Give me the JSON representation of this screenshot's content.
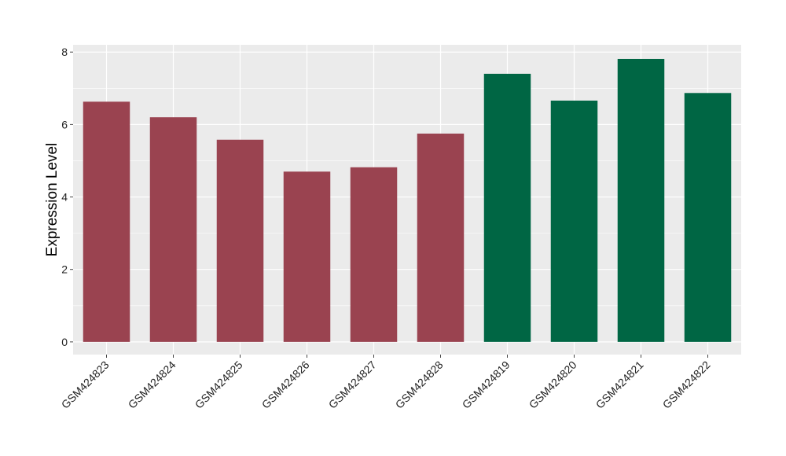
{
  "chart_data": {
    "type": "bar",
    "title": "",
    "xlabel": "",
    "ylabel": "Expression Level",
    "categories": [
      "GSM424823",
      "GSM424824",
      "GSM424825",
      "GSM424826",
      "GSM424827",
      "GSM424828",
      "GSM424819",
      "GSM424820",
      "GSM424821",
      "GSM424822"
    ],
    "values": [
      6.63,
      6.2,
      5.58,
      4.7,
      4.82,
      5.75,
      7.4,
      6.66,
      7.81,
      6.87
    ],
    "bar_colors": [
      "#9a4350",
      "#9a4350",
      "#9a4350",
      "#9a4350",
      "#9a4350",
      "#9a4350",
      "#006644",
      "#006644",
      "#006644",
      "#006644"
    ],
    "ylim": [
      -0.35,
      8.2
    ],
    "yticks": [
      0,
      2,
      4,
      6,
      8
    ],
    "grid": true,
    "panel_background": "#ebebeb",
    "grid_color": "#ffffff"
  }
}
